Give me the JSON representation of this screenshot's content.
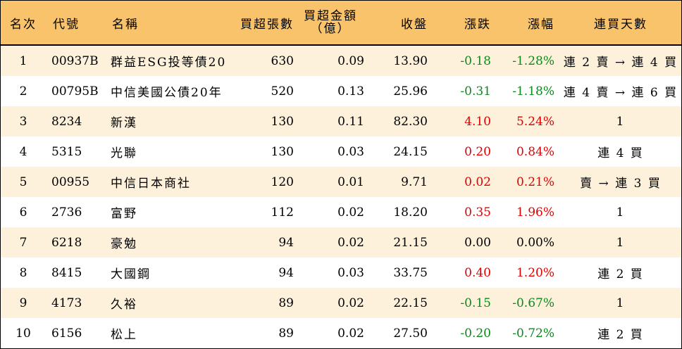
{
  "headers": {
    "rank": "名次",
    "code": "代號",
    "name": "名稱",
    "net_volume": "買超張數",
    "net_amount_line1": "買超金額",
    "net_amount_line2": "（億）",
    "close": "收盤",
    "change": "漲跌",
    "change_pct": "漲幅",
    "consecutive_days": "連買天數"
  },
  "colors": {
    "header_bg": "#f8c36b",
    "odd_row_bg": "#fdf1dc",
    "up": "#e00000",
    "down": "#0a8a1a"
  },
  "rows": [
    {
      "rank": "1",
      "code": "00937B",
      "name": "群益ESG投等債20",
      "net_volume": "630",
      "net_amount": "0.09",
      "close": "13.90",
      "change": "-0.18",
      "change_pct": "-1.28%",
      "direction": "down",
      "consecutive_days": "連 2 賣 → 連 4 買"
    },
    {
      "rank": "2",
      "code": "00795B",
      "name": "中信美國公債20年",
      "net_volume": "520",
      "net_amount": "0.13",
      "close": "25.96",
      "change": "-0.31",
      "change_pct": "-1.18%",
      "direction": "down",
      "consecutive_days": "連 4 賣 → 連 6 買"
    },
    {
      "rank": "3",
      "code": "8234",
      "name": "新漢",
      "net_volume": "130",
      "net_amount": "0.11",
      "close": "82.30",
      "change": "4.10",
      "change_pct": "5.24%",
      "direction": "up",
      "consecutive_days": "1"
    },
    {
      "rank": "4",
      "code": "5315",
      "name": "光聯",
      "net_volume": "130",
      "net_amount": "0.03",
      "close": "24.15",
      "change": "0.20",
      "change_pct": "0.84%",
      "direction": "up",
      "consecutive_days": "連 4 買"
    },
    {
      "rank": "5",
      "code": "00955",
      "name": "中信日本商社",
      "net_volume": "120",
      "net_amount": "0.01",
      "close": "9.71",
      "change": "0.02",
      "change_pct": "0.21%",
      "direction": "up",
      "consecutive_days": "賣 → 連 3 買"
    },
    {
      "rank": "6",
      "code": "2736",
      "name": "富野",
      "net_volume": "112",
      "net_amount": "0.02",
      "close": "18.20",
      "change": "0.35",
      "change_pct": "1.96%",
      "direction": "up",
      "consecutive_days": "1"
    },
    {
      "rank": "7",
      "code": "6218",
      "name": "豪勉",
      "net_volume": "94",
      "net_amount": "0.02",
      "close": "21.15",
      "change": "0.00",
      "change_pct": "0.00%",
      "direction": "zero",
      "consecutive_days": "1"
    },
    {
      "rank": "8",
      "code": "8415",
      "name": "大國鋼",
      "net_volume": "94",
      "net_amount": "0.03",
      "close": "33.75",
      "change": "0.40",
      "change_pct": "1.20%",
      "direction": "up",
      "consecutive_days": "連 2 買"
    },
    {
      "rank": "9",
      "code": "4173",
      "name": "久裕",
      "net_volume": "89",
      "net_amount": "0.02",
      "close": "22.15",
      "change": "-0.15",
      "change_pct": "-0.67%",
      "direction": "down",
      "consecutive_days": "1"
    },
    {
      "rank": "10",
      "code": "6156",
      "name": "松上",
      "net_volume": "89",
      "net_amount": "0.02",
      "close": "27.50",
      "change": "-0.20",
      "change_pct": "-0.72%",
      "direction": "down",
      "consecutive_days": "連 2 買"
    }
  ]
}
